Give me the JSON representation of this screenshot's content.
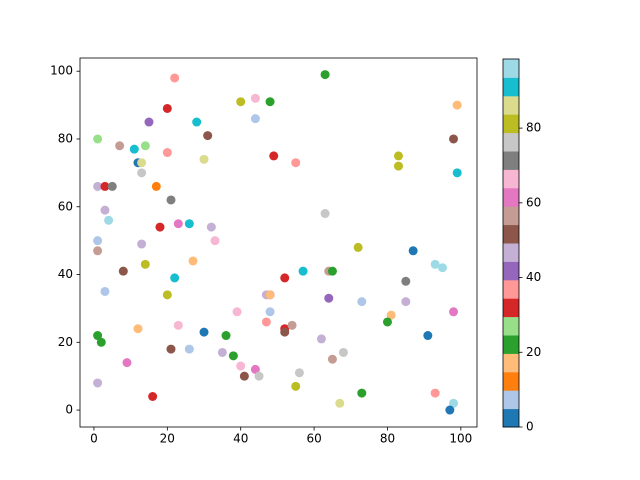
{
  "chart_data": {
    "type": "scatter",
    "x": [
      22,
      63,
      40,
      44,
      48,
      99,
      20,
      15,
      28,
      44,
      1,
      7,
      11,
      14,
      31,
      98,
      20,
      49,
      30,
      55,
      12,
      13,
      83,
      83,
      13,
      99,
      1,
      3,
      5,
      17,
      21,
      3,
      4,
      63,
      18,
      23,
      26,
      32,
      1,
      33,
      13,
      1,
      87,
      72,
      14,
      27,
      8,
      22,
      52,
      57,
      64,
      65,
      93,
      95,
      85,
      3,
      20,
      47,
      48,
      48,
      64,
      73,
      85,
      39,
      48,
      81,
      98,
      47,
      80,
      23,
      12,
      52,
      52,
      54,
      30,
      1,
      36,
      62,
      91,
      2,
      21,
      26,
      35,
      38,
      68,
      65,
      9,
      40,
      44,
      41,
      45,
      56,
      1,
      55,
      16,
      73,
      93,
      67,
      98,
      97
    ],
    "y": [
      98,
      99,
      91,
      92,
      91,
      90,
      89,
      85,
      85,
      86,
      80,
      78,
      77,
      78,
      81,
      80,
      76,
      75,
      74,
      73,
      73,
      73,
      75,
      72,
      70,
      70,
      66,
      66,
      66,
      66,
      62,
      59,
      56,
      58,
      54,
      55,
      55,
      54,
      50,
      50,
      49,
      47,
      47,
      48,
      43,
      44,
      41,
      39,
      39,
      41,
      41,
      41,
      43,
      42,
      38,
      35,
      34,
      34,
      34,
      34,
      33,
      32,
      32,
      29,
      29,
      28,
      29,
      26,
      26,
      25,
      24,
      24,
      23,
      25,
      23,
      22,
      22,
      21,
      22,
      20,
      18,
      18,
      17,
      16,
      17,
      15,
      14,
      13,
      12,
      10,
      10,
      11,
      8,
      7,
      4,
      5,
      5,
      2,
      2,
      0
    ],
    "c": [
      37,
      22,
      82,
      67,
      22,
      17,
      32,
      42,
      92,
      7,
      27,
      57,
      92,
      27,
      52,
      52,
      37,
      32,
      87,
      37,
      2,
      87,
      82,
      82,
      77,
      92,
      47,
      32,
      72,
      12,
      72,
      47,
      97,
      77,
      32,
      62,
      92,
      47,
      7,
      67,
      47,
      57,
      2,
      82,
      82,
      17,
      52,
      92,
      32,
      92,
      57,
      22,
      97,
      97,
      72,
      7,
      82,
      47,
      42,
      17,
      42,
      7,
      47,
      67,
      7,
      17,
      62,
      37,
      22,
      67,
      17,
      32,
      52,
      57,
      2,
      22,
      22,
      47,
      2,
      22,
      52,
      7,
      47,
      22,
      77,
      57,
      62,
      67,
      62,
      52,
      77,
      77,
      47,
      82,
      32,
      22,
      37,
      87,
      97,
      2
    ],
    "cmap": [
      "#1f77b4",
      "#aec7e8",
      "#ff7f0e",
      "#ffbb78",
      "#2ca02c",
      "#98df8a",
      "#d62728",
      "#ff9896",
      "#9467bd",
      "#c5b0d5",
      "#8c564b",
      "#c49c94",
      "#e377c2",
      "#f7b6d2",
      "#7f7f7f",
      "#c7c7c7",
      "#bcbd22",
      "#dbdb8d",
      "#17becf",
      "#9edae5"
    ],
    "clim": [
      0,
      98.5
    ],
    "cticks": [
      0,
      20,
      40,
      60,
      80
    ],
    "xlim": [
      -3.8,
      104.4
    ],
    "ylim": [
      -5,
      103.9
    ],
    "xticks": [
      0,
      20,
      40,
      60,
      80,
      100
    ],
    "yticks": [
      0,
      20,
      40,
      60,
      80,
      100
    ]
  }
}
